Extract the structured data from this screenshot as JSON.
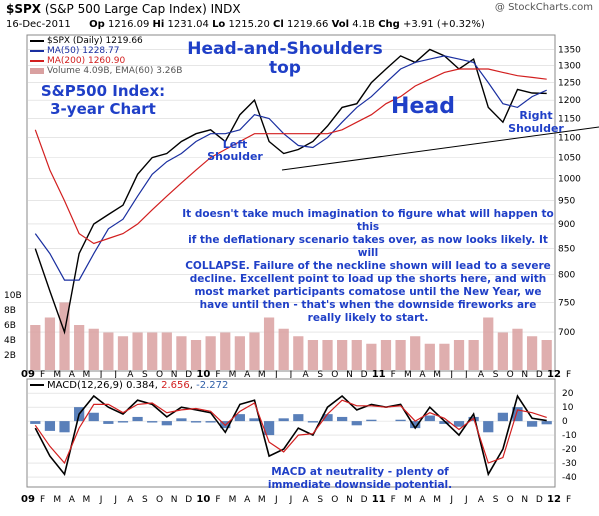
{
  "header": {
    "ticker": "$SPX",
    "index_name": "(S&P 500 Large Cap Index)",
    "exchange": "INDX",
    "copyright": "@ StockCharts.com",
    "date": "16-Dec-2011",
    "open_label": "Op",
    "open_value": "1216.09",
    "high_label": "Hi",
    "high_value": "1231.04",
    "low_label": "Lo",
    "low_value": "1215.20",
    "close_label": "Cl",
    "close_value": "1219.66",
    "volume_label": "Vol",
    "volume_value": "4.1B",
    "change_label": "Chg",
    "change_value": "+3.91 (+0.32%)"
  },
  "legend": {
    "price": "$SPX (Daily) 1219.66",
    "ma50": "MA(50) 1228.77",
    "ma200": "MA(200) 1260.90",
    "volume": "Volume 4.09B, EMA(60) 3.26B",
    "macd_label": "MACD(12,26,9)",
    "macd_value": "0.384",
    "macd_signal": "2.656",
    "macd_hist": "-2.272"
  },
  "annotations": {
    "title_line1": "Head-and-Shoulders",
    "title_line2": "top",
    "chart_title_line1": "S&P500 Index:",
    "chart_title_line2": "3-year Chart",
    "head": "Head",
    "left_shoulder_line1": "Left",
    "left_shoulder_line2": "Shoulder",
    "right_shoulder_line1": "Right",
    "right_shoulder_line2": "Shoulder",
    "commentary": [
      "It doesn't take much imagination to figure what will happen to this",
      "if the deflationary scenario takes over, as now looks likely. It will",
      "COLLAPSE. Failure of the neckline shown will lead to a severe",
      "decline. Excellent point to load up the shorts here, and with",
      "most market participants comatose until the New Year, we",
      "have until then - that's when the downside fireworks are",
      "really likely to start."
    ],
    "macd_note_line1": "MACD at neutrality - plenty of",
    "macd_note_line2": "immediate downside potential."
  },
  "colors": {
    "price_line": "#000000",
    "ma50": "#1a2fa0",
    "ma200": "#d21f1f",
    "volume_bar": "#d9a0a0",
    "volume_up": "#a8a8a8",
    "macd": "#000000",
    "signal": "#d21f1f",
    "histogram": "#2f5fa8",
    "annotation": "#1f3fc7",
    "panel_bg": "#ffffff",
    "grid": "#d8d8d8"
  },
  "chart_data": [
    {
      "type": "line",
      "title": "$SPX (Daily)",
      "y_scale": "log",
      "ylim": [
        650,
        1380
      ],
      "y_ticks": [
        700,
        750,
        800,
        850,
        900,
        950,
        1000,
        1050,
        1100,
        1150,
        1200,
        1250,
        1300,
        1350
      ],
      "volume_ticks": [
        "10B",
        "8B",
        "6B",
        "4B",
        "2B"
      ],
      "x_labels": [
        "09",
        "F",
        "M",
        "A",
        "M",
        "J",
        "J",
        "A",
        "S",
        "O",
        "N",
        "D",
        "10",
        "F",
        "M",
        "A",
        "M",
        "J",
        "J",
        "A",
        "S",
        "O",
        "N",
        "D",
        "11",
        "F",
        "M",
        "A",
        "M",
        "J",
        "J",
        "A",
        "S",
        "O",
        "N",
        "D",
        "12",
        "F"
      ],
      "x": [
        "2009-01",
        "2009-02",
        "2009-03",
        "2009-04",
        "2009-05",
        "2009-06",
        "2009-07",
        "2009-08",
        "2009-09",
        "2009-10",
        "2009-11",
        "2009-12",
        "2010-01",
        "2010-02",
        "2010-03",
        "2010-04",
        "2010-05",
        "2010-06",
        "2010-07",
        "2010-08",
        "2010-09",
        "2010-10",
        "2010-11",
        "2010-12",
        "2011-01",
        "2011-02",
        "2011-03",
        "2011-04",
        "2011-05",
        "2011-06",
        "2011-07",
        "2011-08",
        "2011-09",
        "2011-10",
        "2011-11",
        "2011-12"
      ],
      "series": [
        {
          "name": "$SPX (Daily)",
          "values": [
            850,
            770,
            700,
            840,
            900,
            920,
            940,
            1010,
            1050,
            1060,
            1090,
            1110,
            1120,
            1090,
            1160,
            1200,
            1090,
            1060,
            1070,
            1090,
            1130,
            1180,
            1190,
            1250,
            1290,
            1330,
            1310,
            1350,
            1330,
            1290,
            1320,
            1180,
            1140,
            1230,
            1220,
            1219
          ]
        },
        {
          "name": "MA(50)",
          "values": [
            880,
            840,
            790,
            790,
            840,
            890,
            910,
            960,
            1010,
            1040,
            1060,
            1090,
            1110,
            1110,
            1120,
            1160,
            1150,
            1110,
            1080,
            1075,
            1100,
            1140,
            1180,
            1210,
            1250,
            1290,
            1310,
            1320,
            1330,
            1320,
            1310,
            1250,
            1190,
            1180,
            1210,
            1228
          ]
        },
        {
          "name": "MA(200)",
          "values": [
            1120,
            1020,
            950,
            880,
            860,
            870,
            880,
            900,
            930,
            960,
            990,
            1020,
            1050,
            1070,
            1090,
            1110,
            1110,
            1110,
            1110,
            1110,
            1110,
            1120,
            1140,
            1160,
            1190,
            1210,
            1240,
            1260,
            1280,
            1290,
            1290,
            1290,
            1280,
            1270,
            1265,
            1260
          ]
        }
      ],
      "volume_values_B": [
        6,
        7,
        9,
        6,
        5.5,
        5,
        4.5,
        5,
        5,
        5,
        4.5,
        4,
        4.5,
        5,
        4.5,
        5,
        7,
        5.5,
        4.5,
        4,
        4,
        4,
        4,
        3.5,
        4,
        4,
        4.5,
        3.5,
        3.5,
        4,
        4,
        7,
        5,
        5.5,
        4.5,
        4
      ]
    },
    {
      "type": "line",
      "title": "MACD(12,26,9)",
      "ylim": [
        -45,
        28
      ],
      "y_ticks": [
        20,
        10,
        0,
        -10,
        -20,
        -30,
        -40
      ],
      "x": [
        "2009-01",
        "2009-02",
        "2009-03",
        "2009-04",
        "2009-05",
        "2009-06",
        "2009-07",
        "2009-08",
        "2009-09",
        "2009-10",
        "2009-11",
        "2009-12",
        "2010-01",
        "2010-02",
        "2010-03",
        "2010-04",
        "2010-05",
        "2010-06",
        "2010-07",
        "2010-08",
        "2010-09",
        "2010-10",
        "2010-11",
        "2010-12",
        "2011-01",
        "2011-02",
        "2011-03",
        "2011-04",
        "2011-05",
        "2011-06",
        "2011-07",
        "2011-08",
        "2011-09",
        "2011-10",
        "2011-11",
        "2011-12"
      ],
      "series": [
        {
          "name": "MACD",
          "values": [
            -5,
            -25,
            -38,
            5,
            18,
            10,
            5,
            15,
            12,
            3,
            10,
            8,
            6,
            -8,
            12,
            15,
            -25,
            -20,
            -5,
            -10,
            10,
            18,
            8,
            12,
            10,
            12,
            -5,
            10,
            0,
            -10,
            5,
            -38,
            -20,
            18,
            2,
            0.384
          ]
        },
        {
          "name": "Signal",
          "values": [
            -3,
            -18,
            -30,
            -5,
            12,
            12,
            6,
            12,
            13,
            6,
            8,
            9,
            7,
            -3,
            7,
            13,
            -15,
            -22,
            -10,
            -9,
            5,
            15,
            11,
            11,
            10,
            11,
            0,
            6,
            2,
            -6,
            2,
            -30,
            -26,
            8,
            6,
            2.656
          ]
        },
        {
          "name": "Histogram",
          "values": [
            -2,
            -7,
            -8,
            10,
            6,
            -2,
            -1,
            3,
            -1,
            -3,
            2,
            -1,
            -1,
            -5,
            5,
            2,
            -10,
            2,
            5,
            -1,
            5,
            3,
            -3,
            1,
            0,
            1,
            -5,
            4,
            -2,
            -4,
            3,
            -8,
            6,
            10,
            -4,
            -2.272
          ]
        }
      ]
    }
  ]
}
